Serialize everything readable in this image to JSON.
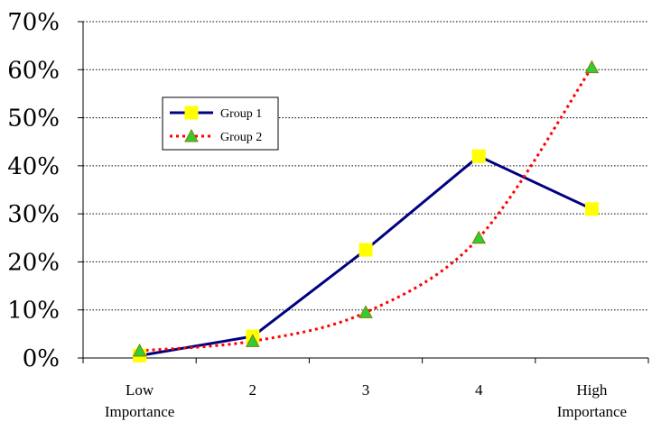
{
  "chart_data": {
    "type": "line",
    "categories": [
      "Low Importance",
      "2",
      "3",
      "4",
      "High Importance"
    ],
    "category_lines": [
      [
        "Low",
        "Importance"
      ],
      [
        "2"
      ],
      [
        "3"
      ],
      [
        "4"
      ],
      [
        "High",
        "Importance"
      ]
    ],
    "ylim": [
      0,
      70
    ],
    "yticks": [
      "0%",
      "10%",
      "20%",
      "30%",
      "40%",
      "50%",
      "60%",
      "70%"
    ],
    "grid": true,
    "legend_position": "upper-left",
    "series": [
      {
        "name": "Group 1",
        "values": [
          0.5,
          4.5,
          22.5,
          42,
          31
        ],
        "color": "#000080",
        "line": "solid",
        "marker": "square",
        "marker_color": "#ffff00",
        "smooth": false
      },
      {
        "name": "Group 2",
        "values": [
          1.5,
          3.5,
          9.5,
          25,
          60.5
        ],
        "color": "#ff0000",
        "line": "dotted",
        "marker": "triangle",
        "marker_color": "#33cc33",
        "smooth": true
      }
    ]
  }
}
